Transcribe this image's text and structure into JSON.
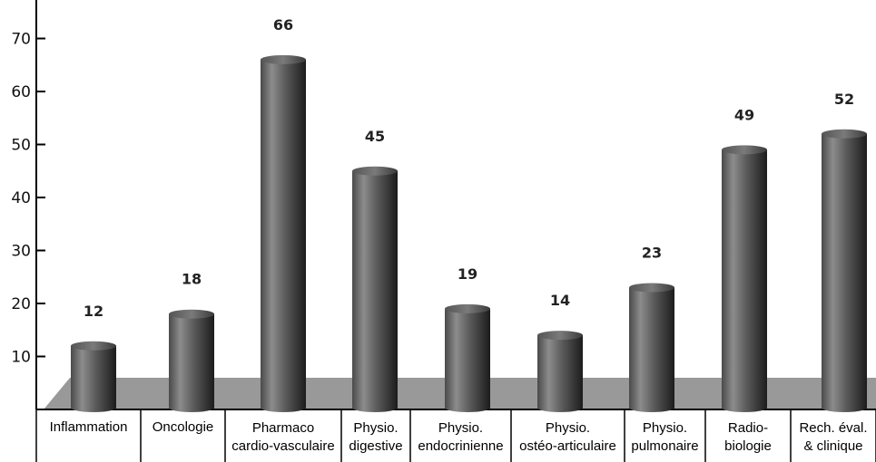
{
  "chart_data": {
    "type": "bar",
    "categories": [
      [
        "Inflammation"
      ],
      [
        "Oncologie"
      ],
      [
        "Pharmaco",
        "cardio-vasculaire"
      ],
      [
        "Physio.",
        "digestive"
      ],
      [
        "Physio.",
        "endocrinienne"
      ],
      [
        "Physio.",
        "ostéo-articulaire"
      ],
      [
        "Physio.",
        "pulmonaire"
      ],
      [
        "Radio-",
        "biologie"
      ],
      [
        "Rech. éval.",
        "& clinique"
      ]
    ],
    "values": [
      12,
      18,
      66,
      45,
      19,
      14,
      23,
      49,
      52
    ],
    "value_labels": [
      "12",
      "18",
      "66",
      "45",
      "19",
      "14",
      "23",
      "49",
      "52"
    ],
    "yticks": [
      "10",
      "20",
      "30",
      "40",
      "50",
      "60",
      "70"
    ],
    "ylim": [
      0,
      76
    ],
    "title": "",
    "xlabel": "",
    "ylabel": "",
    "grid": false,
    "legend": "none",
    "colors": {
      "bar_light": "#8a8a8a",
      "bar_dark": "#1e1e1e",
      "floor": "#999999",
      "axis": "#000000"
    }
  }
}
